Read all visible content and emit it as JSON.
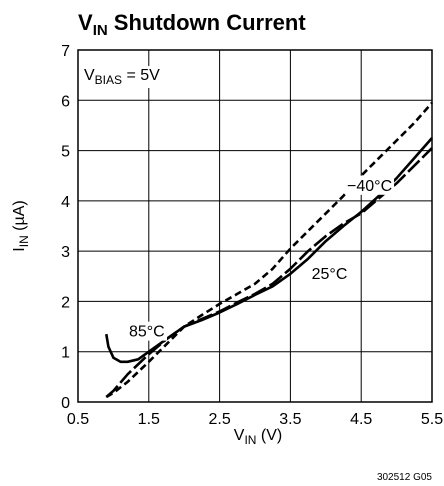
{
  "chart_data": {
    "type": "line",
    "title": {
      "main": "V",
      "sub": "IN",
      "rest": " Shutdown Current"
    },
    "xlabel": {
      "main": "V",
      "sub": "IN",
      "rest": " (V)"
    },
    "ylabel": {
      "main": "I",
      "sub": "IN",
      "rest": " (µA)"
    },
    "xlim": [
      0.5,
      5.5
    ],
    "ylim": [
      0,
      7
    ],
    "xticks": [
      "0.5",
      "1.5",
      "2.5",
      "3.5",
      "4.5",
      "5.5"
    ],
    "yticks": [
      "0",
      "1",
      "2",
      "3",
      "4",
      "5",
      "6",
      "7"
    ],
    "xtick_values": [
      0.5,
      1.5,
      2.5,
      3.5,
      4.5,
      5.5
    ],
    "ytick_values": [
      0,
      1,
      2,
      3,
      4,
      5,
      6,
      7
    ],
    "grid": true,
    "annotation": {
      "main": "V",
      "sub": "BIAS",
      "rest": " = 5V"
    },
    "footnote": "302512 G05",
    "series": [
      {
        "name": "85°C",
        "style": "solid",
        "x": [
          0.9,
          0.93,
          1.0,
          1.1,
          1.2,
          1.35,
          1.5,
          1.75,
          2.0,
          2.25,
          2.5,
          2.75,
          3.0,
          3.25,
          3.5,
          3.75,
          4.0,
          4.25,
          4.5,
          4.75,
          5.0,
          5.25,
          5.5
        ],
        "y": [
          1.35,
          1.1,
          0.88,
          0.8,
          0.8,
          0.85,
          1.0,
          1.25,
          1.5,
          1.63,
          1.78,
          1.95,
          2.13,
          2.3,
          2.55,
          2.85,
          3.2,
          3.5,
          3.78,
          4.1,
          4.45,
          4.85,
          5.25
        ]
      },
      {
        "name": "25°C",
        "style": "long-dash",
        "x": [
          0.9,
          1.0,
          1.2,
          1.5,
          1.75,
          2.0,
          2.25,
          2.5,
          2.75,
          3.0,
          3.25,
          3.5,
          3.75,
          4.0,
          4.25,
          4.5,
          4.75,
          5.0,
          5.25,
          5.5
        ],
        "y": [
          0.1,
          0.22,
          0.55,
          0.95,
          1.25,
          1.5,
          1.65,
          1.8,
          1.98,
          2.15,
          2.35,
          2.65,
          3.0,
          3.3,
          3.55,
          3.75,
          4.05,
          4.35,
          4.7,
          5.05
        ]
      },
      {
        "name": "−40°C",
        "style": "short-dash",
        "x": [
          0.9,
          1.0,
          1.2,
          1.5,
          1.75,
          2.0,
          2.25,
          2.5,
          2.75,
          3.0,
          3.25,
          3.5,
          3.75,
          4.0,
          4.25,
          4.5,
          4.75,
          5.0,
          5.25,
          5.5
        ],
        "y": [
          0.1,
          0.18,
          0.4,
          0.8,
          1.15,
          1.5,
          1.73,
          1.95,
          2.15,
          2.35,
          2.65,
          3.05,
          3.4,
          3.75,
          4.1,
          4.5,
          4.85,
          5.2,
          5.55,
          5.95
        ]
      }
    ],
    "series_labels": [
      {
        "series": "85°C",
        "x": 1.22,
        "y": 1.3
      },
      {
        "series": "25°C",
        "x": 3.8,
        "y": 2.45
      },
      {
        "series": "−40°C",
        "x": 4.3,
        "y": 4.2
      }
    ]
  }
}
